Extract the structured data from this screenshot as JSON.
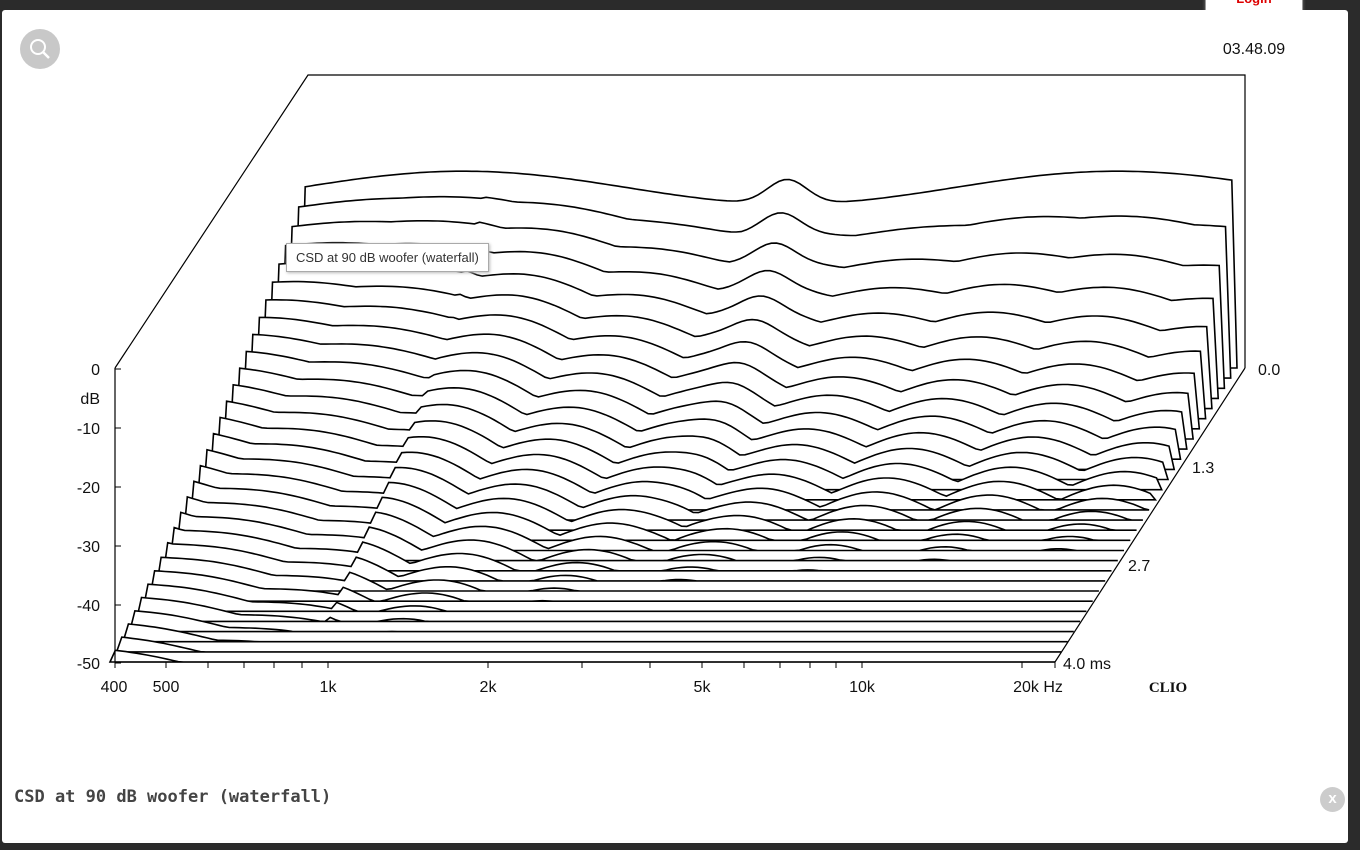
{
  "login": "Login",
  "timestamp": "03.48.09",
  "tooltip": "CSD at 90 dB woofer (waterfall)",
  "caption": "CSD at 90 dB woofer (waterfall)",
  "close": "x",
  "image": {
    "y_labels": [
      "0",
      "dB",
      "-10",
      "-20",
      "-30",
      "-40",
      "-50"
    ],
    "x_labels": [
      "400",
      "500",
      "1k",
      "2k",
      "5k",
      "10k",
      "20k Hz"
    ],
    "time_labels": [
      "0.0",
      "1.3",
      "2.7",
      "4.0 ms"
    ],
    "brand": "CLIO"
  }
}
